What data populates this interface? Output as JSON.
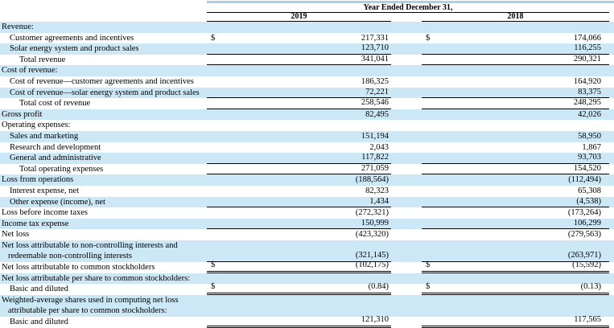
{
  "header": {
    "title": "Year Ended December 31,",
    "columns": [
      "2019",
      "2018"
    ]
  },
  "colors": {
    "row_highlight": "#cce7f5",
    "top_strip": "#aecfe6",
    "rule": "#000000"
  },
  "rows": [
    {
      "label": "Revenue:",
      "indent": 0,
      "cur": "",
      "v2019": "",
      "v2018": ""
    },
    {
      "label": "Customer agreements and incentives",
      "indent": 1,
      "cur": "$",
      "v2019": "217,331",
      "v2018": "174,066"
    },
    {
      "label": "Solar energy system and product sales",
      "indent": 1,
      "cur": "",
      "v2019": "123,710",
      "v2018": "116,255"
    },
    {
      "label": "Total revenue",
      "indent": 2,
      "cur": "",
      "v2019": "341,041",
      "v2018": "290,321"
    },
    {
      "label": "Cost of revenue:",
      "indent": 0,
      "cur": "",
      "v2019": "",
      "v2018": ""
    },
    {
      "label": "Cost of revenue—customer agreements and incentives",
      "indent": 1,
      "cur": "",
      "v2019": "186,325",
      "v2018": "164,920"
    },
    {
      "label": "Cost of revenue—solar energy system and product sales",
      "indent": 1,
      "cur": "",
      "v2019": "72,221",
      "v2018": "83,375"
    },
    {
      "label": "Total cost of revenue",
      "indent": 2,
      "cur": "",
      "v2019": "258,546",
      "v2018": "248,295"
    },
    {
      "label": "Gross profit",
      "indent": 0,
      "cur": "",
      "v2019": "82,495",
      "v2018": "42,026"
    },
    {
      "label": "Operating expenses:",
      "indent": 0,
      "cur": "",
      "v2019": "",
      "v2018": ""
    },
    {
      "label": "Sales and marketing",
      "indent": 1,
      "cur": "",
      "v2019": "151,194",
      "v2018": "58,950"
    },
    {
      "label": "Research and development",
      "indent": 1,
      "cur": "",
      "v2019": "2,043",
      "v2018": "1,867"
    },
    {
      "label": "General and administrative",
      "indent": 1,
      "cur": "",
      "v2019": "117,822",
      "v2018": "93,703"
    },
    {
      "label": "Total operating expenses",
      "indent": 2,
      "cur": "",
      "v2019": "271,059",
      "v2018": "154,520"
    },
    {
      "label": "Loss from operations",
      "indent": 0,
      "cur": "",
      "v2019": "(188,564)",
      "v2018": "(112,494)"
    },
    {
      "label": "Interest expense, net",
      "indent": 1,
      "cur": "",
      "v2019": "82,323",
      "v2018": "65,308"
    },
    {
      "label": "Other expense (income), net",
      "indent": 1,
      "cur": "",
      "v2019": "1,434",
      "v2018": "(4,538)"
    },
    {
      "label": "Loss before income taxes",
      "indent": 0,
      "cur": "",
      "v2019": "(272,321)",
      "v2018": "(173,264)"
    },
    {
      "label": "Income tax expense",
      "indent": 0,
      "cur": "",
      "v2019": "150,999",
      "v2018": "106,299"
    },
    {
      "label": "Net loss",
      "indent": 0,
      "cur": "",
      "v2019": "(423,320)",
      "v2018": "(279,563)"
    },
    {
      "label": "Net loss attributable to non-controlling interests and redeemable non-controlling interests",
      "indent": 0,
      "cur": "",
      "v2019": "(321,145)",
      "v2018": "(263,971)"
    },
    {
      "label": "Net loss attributable to common stockholders",
      "indent": 0,
      "cur": "$",
      "v2019": "(102,175)",
      "v2018": "(15,592)"
    },
    {
      "label": "Net loss attributable per share to common stockholders:",
      "indent": 0,
      "cur": "",
      "v2019": "",
      "v2018": ""
    },
    {
      "label": "Basic and diluted",
      "indent": 1,
      "cur": "$",
      "v2019": "(0.84)",
      "v2018": "(0.13)"
    },
    {
      "label": "Weighted-average shares used in computing net loss attributable per share to common stockholders:",
      "indent": 0,
      "cur": "",
      "v2019": "",
      "v2018": ""
    },
    {
      "label": "Basic and diluted",
      "indent": 1,
      "cur": "",
      "v2019": "121,310",
      "v2018": "117,565"
    }
  ]
}
